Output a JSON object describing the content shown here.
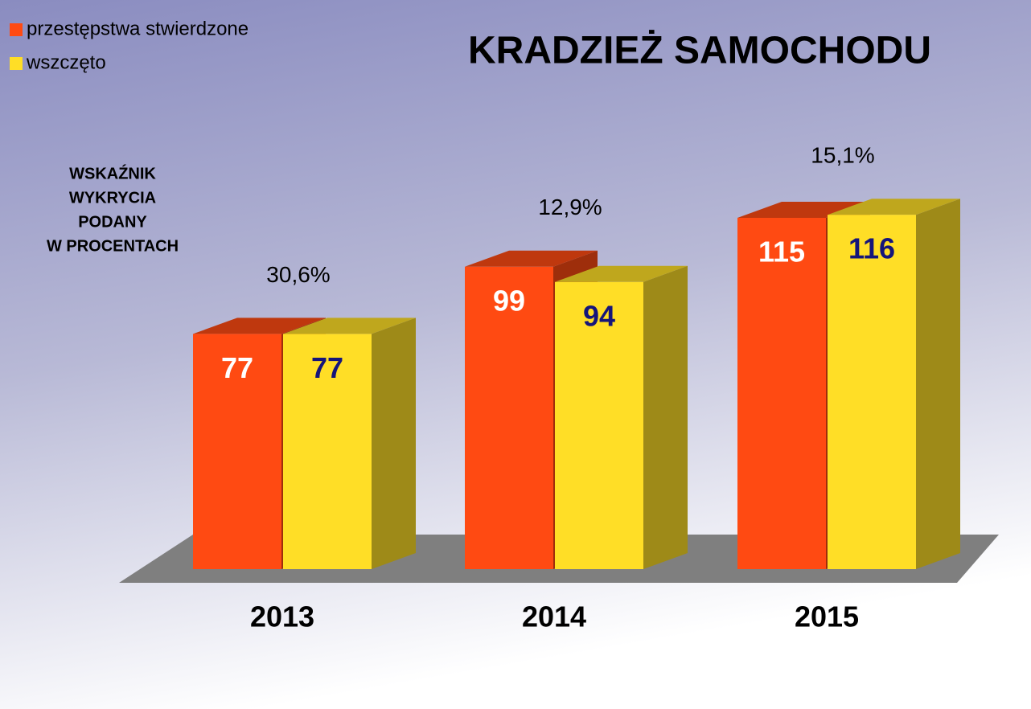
{
  "chart_data": {
    "type": "bar3d",
    "title": "KRADZIEŻ SAMOCHODU",
    "categories": [
      "2013",
      "2014",
      "2015"
    ],
    "series": [
      {
        "name": "przestępstwa stwierdzone",
        "color": "#ff4a12",
        "values": [
          77,
          99,
          115
        ]
      },
      {
        "name": "wszczęto",
        "color": "#ffde26",
        "values": [
          77,
          94,
          116
        ]
      }
    ],
    "annotations": [
      "30,6%",
      "12,9%",
      "15,1%"
    ],
    "note": [
      "WSKAŹNIK",
      "WYKRYCIA",
      "PODANY",
      "W PROCENTACH"
    ],
    "legend": "top-left"
  }
}
